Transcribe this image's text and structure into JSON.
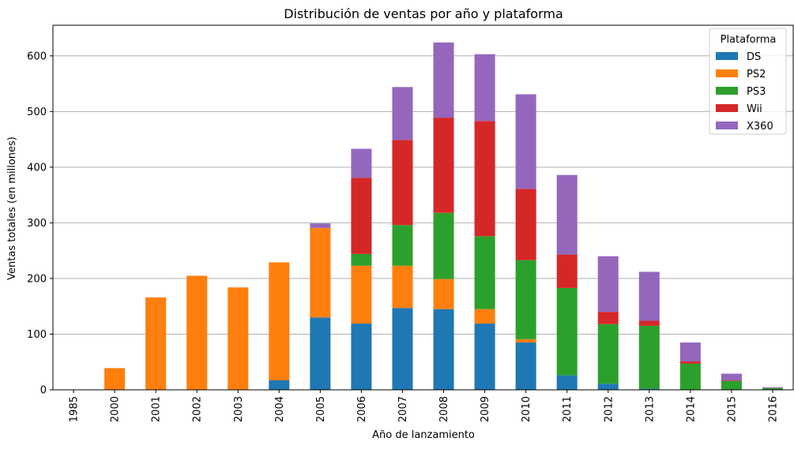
{
  "chart_data": {
    "type": "bar",
    "stacked": true,
    "title": "Distribución de ventas por año y plataforma",
    "xlabel": "Año de lanzamiento",
    "ylabel": "Ventas totales (en millones)",
    "ylim": [
      0,
      655
    ],
    "yticks": [
      0,
      100,
      200,
      300,
      400,
      500,
      600
    ],
    "grid": "y",
    "legend": {
      "title": "Plataforma",
      "placement": "top-right"
    },
    "categories": [
      "1985",
      "2000",
      "2001",
      "2002",
      "2003",
      "2004",
      "2005",
      "2006",
      "2007",
      "2008",
      "2009",
      "2010",
      "2011",
      "2012",
      "2013",
      "2014",
      "2015",
      "2016"
    ],
    "series": [
      {
        "name": "DS",
        "color": "#1f77b4",
        "values": [
          0.02,
          0,
          0,
          0,
          0,
          17,
          130,
          119,
          147,
          145,
          119,
          85,
          26,
          11,
          2,
          0,
          0,
          0
        ]
      },
      {
        "name": "PS2",
        "color": "#ff7f0e",
        "values": [
          0,
          39,
          166,
          205,
          184,
          212,
          161,
          104,
          76,
          54,
          26,
          6,
          0,
          0,
          0,
          0,
          0,
          0
        ]
      },
      {
        "name": "PS3",
        "color": "#2ca02c",
        "values": [
          0,
          0,
          0,
          0,
          0,
          0,
          0,
          21,
          73,
          119,
          131,
          142,
          157,
          107,
          113,
          47,
          16,
          3
        ]
      },
      {
        "name": "Wii",
        "color": "#d62728",
        "values": [
          0,
          0,
          0,
          0,
          0,
          0,
          0,
          137,
          153,
          171,
          207,
          128,
          60,
          22,
          9,
          4,
          1,
          0.2
        ]
      },
      {
        "name": "X360",
        "color": "#9467bd",
        "values": [
          0,
          0,
          0,
          0,
          0,
          0,
          8,
          52,
          95,
          135,
          120,
          170,
          143,
          100,
          88,
          34,
          12,
          1.5
        ]
      }
    ]
  }
}
